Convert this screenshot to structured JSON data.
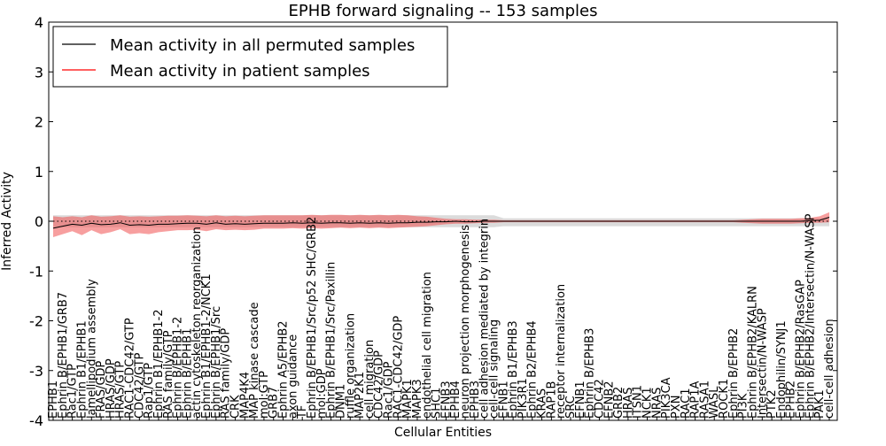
{
  "chart_data": {
    "type": "line",
    "title": "EPHB forward signaling -- 153 samples",
    "xlabel": "Cellular Entities",
    "ylabel": "Inferred Activity",
    "ylim": [
      -4,
      4
    ],
    "yticks": [
      -4,
      -3,
      -2,
      -1,
      0,
      1,
      2,
      3,
      4
    ],
    "grid": false,
    "legend_position": "top-left",
    "categories": [
      "EPHB1",
      "Ephrin B/EPHB1/GRB7",
      "Rac1/GTP",
      "Ephrin B1/EPHB1",
      "lamellipodium assembly",
      "FRAS/GDP",
      "HRAS/GDP",
      "HRAS/GTP",
      "RAC1-CDC42/GTP",
      "CDC42/GTP",
      "Rap1/GTP",
      "Ephrin B1/EPHB1-2",
      "RAS family/GTP",
      "Ephrin B/EPHB1-2",
      "Ephrin B/EPHB1",
      "actin cytoskeleton reorganization",
      "Ephrin B1/EPHB1-2/NCK1",
      "Ephrin B/EPHB1/Src",
      "RAS family/GDP",
      "CRK",
      "MAP4K4",
      "MAP kinase cascade",
      "mol:GTP",
      "GRB7",
      "Ephrin A5/EPHB2",
      "axon guidance",
      "TF",
      "Ephrin B/EPHB1/Src/p52 SHC/GRB2",
      "mol:GDP",
      "Ephrin B/EPHB1/Src/Paxillin",
      "DNM1",
      "ruffle organization",
      "MAP2K1",
      "cell migration",
      "CDC42/GDP",
      "Rac1/GDP",
      "RAC1-CDC42/GDP",
      "MAPK1",
      "MAPK3",
      "endothelial cell migration",
      "SHC1",
      "EFNB3",
      "EPHB4",
      "neuron projection morphogenesis",
      "EPHB3",
      "cell adhesion mediated by integrin",
      "cell-cell signaling",
      "EFNB1",
      "Ephrin B1/EPHB3",
      "PIK3R1",
      "Ephrin B2/EPHB4",
      "KRAS",
      "RAP1B",
      "receptor internalization",
      "SRC",
      "EFNB1",
      "Ephrin B/EPHB3",
      "CDC42",
      "EFNB2",
      "GRB2",
      "HRAS",
      "ITSN1",
      "NCK1",
      "NRAS",
      "PIK3CA",
      "PXN",
      "RAC1",
      "RAP1A",
      "RASA1",
      "WASL",
      "ROCK1",
      "Ephrin B/EPHB2",
      "PI3K",
      "Ephrin B/EPHB2/KALRN",
      "Intersectin/N-WASP",
      "PTK2",
      "Endophilin/SYNJ1",
      "EPHB2",
      "Ephrin B/EPHB2/RasGAP",
      "Ephrin B/EPHB2/Intersectin/N-WASP",
      "PAK1",
      "cell-cell adhesion"
    ],
    "series": [
      {
        "name": "Mean activity in all permuted samples",
        "color": "#000000",
        "style": "dotted",
        "values": [
          0.0,
          0.0,
          0.0,
          0.0,
          0.0,
          0.0,
          0.0,
          0.0,
          0.0,
          0.0,
          0.0,
          0.0,
          0.0,
          0.0,
          0.0,
          0.0,
          0.0,
          0.0,
          0.0,
          0.0,
          0.0,
          0.0,
          0.0,
          0.0,
          0.0,
          0.0,
          0.0,
          0.0,
          0.0,
          0.0,
          0.0,
          0.0,
          0.0,
          0.0,
          0.0,
          0.0,
          0.0,
          0.0,
          0.0,
          0.0,
          0.0,
          0.0,
          0.0,
          0.0,
          0.0,
          0.0,
          0.0,
          0.0,
          0.0,
          0.0,
          0.0,
          0.0,
          0.0,
          0.0,
          0.0,
          0.0,
          0.0,
          0.0,
          0.0,
          0.0,
          0.0,
          0.0,
          0.0,
          0.0,
          0.0,
          0.0,
          0.0,
          0.0,
          0.0,
          0.0,
          0.0,
          0.0,
          0.0,
          0.0,
          0.0,
          0.0,
          0.0,
          0.0,
          0.0,
          0.0,
          0.0,
          0.0
        ],
        "band_low": [
          -0.12,
          -0.12,
          -0.12,
          -0.12,
          -0.12,
          -0.12,
          -0.12,
          -0.12,
          -0.12,
          -0.12,
          -0.12,
          -0.12,
          -0.12,
          -0.12,
          -0.12,
          -0.12,
          -0.12,
          -0.12,
          -0.12,
          -0.12,
          -0.12,
          -0.12,
          -0.12,
          -0.12,
          -0.12,
          -0.12,
          -0.12,
          -0.12,
          -0.12,
          -0.12,
          -0.12,
          -0.12,
          -0.12,
          -0.12,
          -0.12,
          -0.12,
          -0.12,
          -0.12,
          -0.12,
          -0.12,
          -0.12,
          -0.12,
          -0.12,
          -0.12,
          -0.12,
          -0.12,
          -0.12,
          -0.1,
          -0.1,
          -0.1,
          -0.1,
          -0.1,
          -0.1,
          -0.1,
          -0.1,
          -0.1,
          -0.1,
          -0.1,
          -0.1,
          -0.1,
          -0.1,
          -0.1,
          -0.1,
          -0.1,
          -0.1,
          -0.1,
          -0.1,
          -0.1,
          -0.1,
          -0.1,
          -0.1,
          -0.1,
          -0.1,
          -0.1,
          -0.1,
          -0.1,
          -0.1,
          -0.1,
          -0.1,
          -0.1,
          -0.1,
          -0.1
        ],
        "band_high": [
          0.12,
          0.12,
          0.12,
          0.12,
          0.12,
          0.12,
          0.12,
          0.12,
          0.12,
          0.12,
          0.12,
          0.12,
          0.12,
          0.12,
          0.12,
          0.12,
          0.12,
          0.12,
          0.12,
          0.12,
          0.12,
          0.12,
          0.12,
          0.12,
          0.12,
          0.12,
          0.12,
          0.12,
          0.12,
          0.12,
          0.12,
          0.12,
          0.12,
          0.12,
          0.12,
          0.12,
          0.12,
          0.12,
          0.12,
          0.12,
          0.12,
          0.12,
          0.12,
          0.12,
          0.12,
          0.12,
          0.12,
          0.06,
          0.06,
          0.06,
          0.06,
          0.06,
          0.06,
          0.06,
          0.06,
          0.06,
          0.06,
          0.06,
          0.06,
          0.06,
          0.06,
          0.06,
          0.06,
          0.06,
          0.06,
          0.06,
          0.06,
          0.06,
          0.06,
          0.06,
          0.06,
          0.06,
          0.06,
          0.06,
          0.06,
          0.06,
          0.06,
          0.06,
          0.06,
          0.06,
          0.06,
          0.06
        ]
      },
      {
        "name": "Mean activity in patient samples",
        "color": "#ff0000",
        "style": "solid",
        "values": [
          -0.14,
          -0.1,
          -0.06,
          -0.08,
          -0.04,
          -0.07,
          -0.06,
          -0.03,
          -0.08,
          -0.07,
          -0.08,
          -0.06,
          -0.06,
          -0.05,
          -0.04,
          -0.04,
          -0.06,
          -0.03,
          -0.06,
          -0.05,
          -0.06,
          -0.05,
          -0.04,
          -0.04,
          -0.04,
          -0.03,
          -0.04,
          -0.03,
          -0.04,
          -0.03,
          -0.03,
          -0.04,
          -0.03,
          -0.04,
          -0.03,
          -0.04,
          -0.03,
          -0.03,
          -0.02,
          -0.02,
          -0.01,
          -0.01,
          0.0,
          -0.01,
          -0.01,
          0.0,
          0.0,
          0.0,
          0.0,
          0.0,
          0.0,
          0.0,
          0.0,
          0.0,
          0.0,
          0.0,
          0.0,
          0.0,
          0.0,
          0.0,
          0.0,
          0.0,
          0.0,
          0.0,
          0.0,
          0.0,
          0.0,
          0.0,
          0.0,
          0.0,
          0.0,
          0.0,
          0.0,
          0.0,
          0.0,
          0.0,
          0.0,
          0.0,
          0.0,
          0.01,
          0.02,
          0.08
        ],
        "band_low": [
          -0.32,
          -0.26,
          -0.2,
          -0.28,
          -0.18,
          -0.26,
          -0.22,
          -0.16,
          -0.26,
          -0.24,
          -0.26,
          -0.22,
          -0.2,
          -0.18,
          -0.18,
          -0.17,
          -0.2,
          -0.16,
          -0.18,
          -0.17,
          -0.18,
          -0.17,
          -0.15,
          -0.15,
          -0.15,
          -0.14,
          -0.15,
          -0.14,
          -0.15,
          -0.14,
          -0.13,
          -0.14,
          -0.13,
          -0.14,
          -0.13,
          -0.14,
          -0.13,
          -0.12,
          -0.11,
          -0.1,
          -0.08,
          -0.06,
          -0.05,
          -0.05,
          -0.04,
          -0.03,
          -0.03,
          -0.02,
          -0.02,
          -0.02,
          -0.02,
          -0.02,
          -0.02,
          -0.02,
          -0.02,
          -0.02,
          -0.02,
          -0.02,
          -0.02,
          -0.02,
          -0.02,
          -0.02,
          -0.02,
          -0.02,
          -0.02,
          -0.02,
          -0.02,
          -0.02,
          -0.02,
          -0.02,
          -0.02,
          -0.02,
          -0.03,
          -0.04,
          -0.05,
          -0.05,
          -0.05,
          -0.05,
          -0.04,
          -0.03,
          -0.03,
          -0.02
        ],
        "band_high": [
          0.1,
          0.08,
          0.1,
          0.08,
          0.12,
          0.09,
          0.1,
          0.12,
          0.09,
          0.1,
          0.09,
          0.1,
          0.11,
          0.11,
          0.12,
          0.11,
          0.1,
          0.12,
          0.1,
          0.11,
          0.1,
          0.11,
          0.12,
          0.12,
          0.12,
          0.12,
          0.12,
          0.13,
          0.12,
          0.13,
          0.13,
          0.12,
          0.13,
          0.12,
          0.13,
          0.12,
          0.13,
          0.12,
          0.1,
          0.09,
          0.07,
          0.05,
          0.04,
          0.04,
          0.03,
          0.03,
          0.03,
          0.02,
          0.02,
          0.02,
          0.02,
          0.02,
          0.02,
          0.02,
          0.02,
          0.02,
          0.02,
          0.02,
          0.02,
          0.02,
          0.02,
          0.02,
          0.02,
          0.02,
          0.02,
          0.02,
          0.02,
          0.02,
          0.02,
          0.02,
          0.02,
          0.02,
          0.03,
          0.04,
          0.05,
          0.05,
          0.05,
          0.05,
          0.06,
          0.07,
          0.1,
          0.18
        ]
      }
    ]
  }
}
